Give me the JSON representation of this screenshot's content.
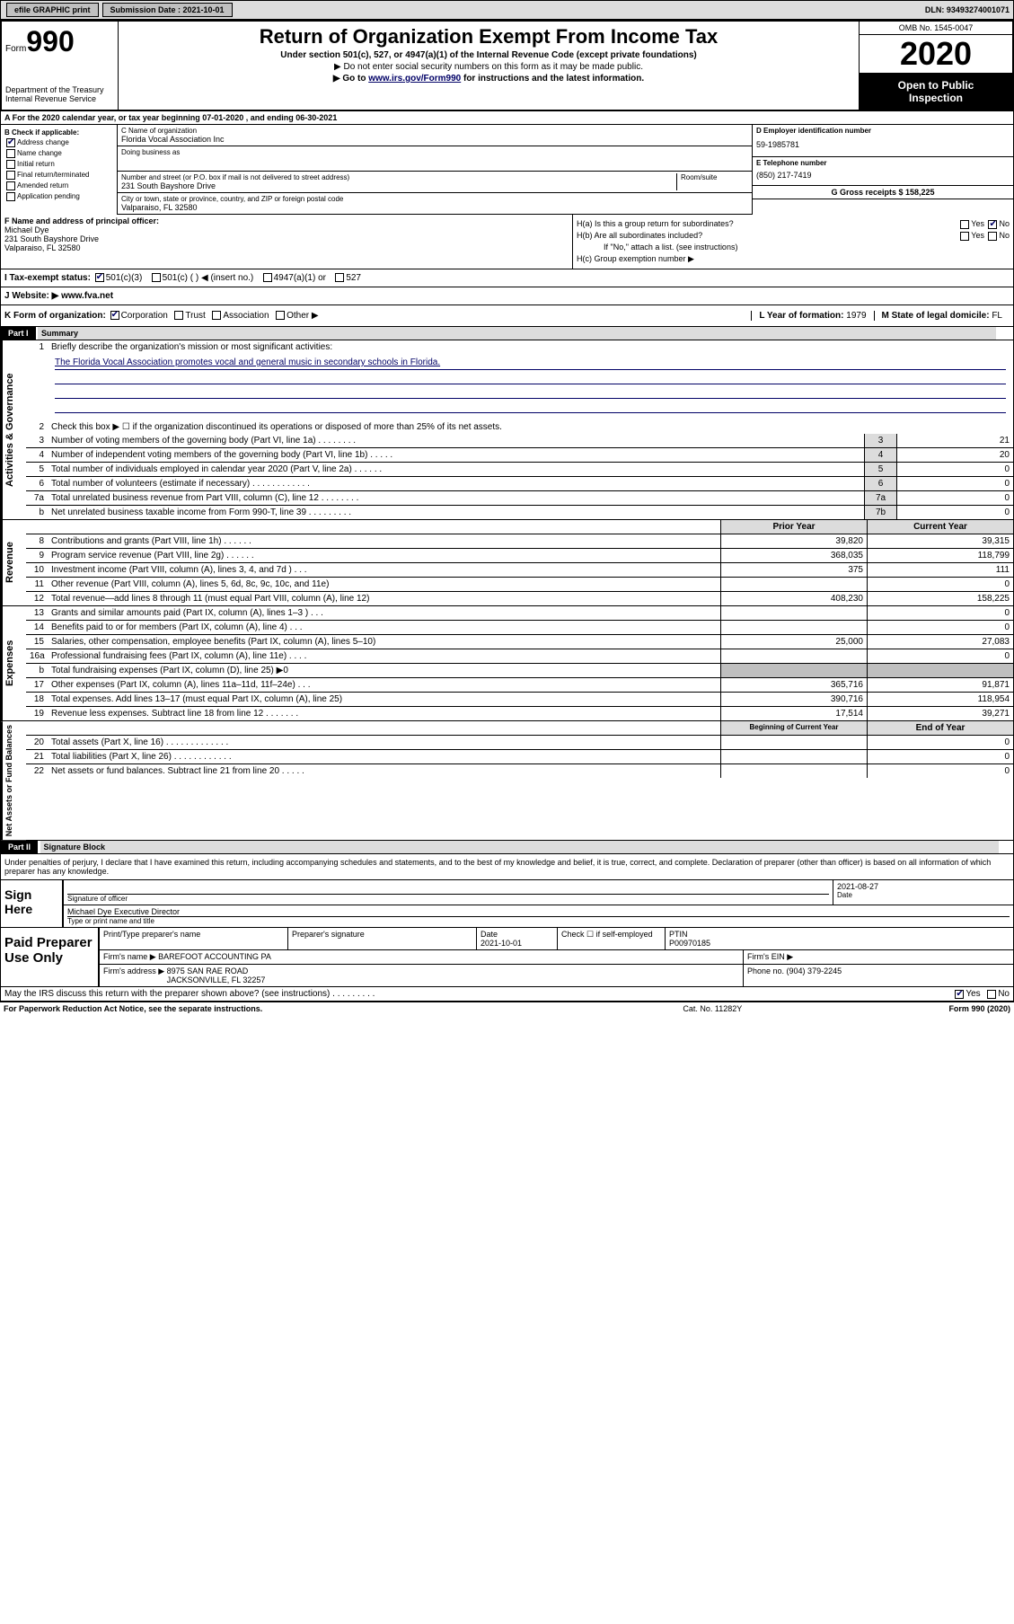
{
  "top": {
    "efile": "efile GRAPHIC print",
    "sub_label": "Submission Date : 2021-10-01",
    "dln": "DLN: 93493274001071"
  },
  "header": {
    "form_word": "Form",
    "form_num": "990",
    "dept": "Department of the Treasury\nInternal Revenue Service",
    "title": "Return of Organization Exempt From Income Tax",
    "sub1": "Under section 501(c), 527, or 4947(a)(1) of the Internal Revenue Code (except private foundations)",
    "sub2": "▶ Do not enter social security numbers on this form as it may be made public.",
    "sub3a": "▶ Go to ",
    "sub3_link": "www.irs.gov/Form990",
    "sub3b": " for instructions and the latest information.",
    "omb": "OMB No. 1545-0047",
    "year": "2020",
    "public": "Open to Public\nInspection"
  },
  "rowA": "A For the 2020 calendar year, or tax year beginning 07-01-2020    , and ending 06-30-2021",
  "colB": {
    "header": "B Check if applicable:",
    "items": [
      "Address change",
      "Name change",
      "Initial return",
      "Final return/terminated",
      "Amended return",
      "Application pending"
    ],
    "checked_idx": 0
  },
  "colC": {
    "name_lbl": "C Name of organization",
    "name": "Florida Vocal Association Inc",
    "dba_lbl": "Doing business as",
    "dba": "",
    "street_lbl": "Number and street (or P.O. box if mail is not delivered to street address)",
    "room_lbl": "Room/suite",
    "street": "231 South Bayshore Drive",
    "city_lbl": "City or town, state or province, country, and ZIP or foreign postal code",
    "city": "Valparaiso, FL  32580"
  },
  "colDE": {
    "d_lbl": "D Employer identification number",
    "d_val": "59-1985781",
    "e_lbl": "E Telephone number",
    "e_val": "(850) 217-7419",
    "g_lbl": "G Gross receipts $ 158,225"
  },
  "fBlock": {
    "f_lbl": "F Name and address of principal officer:",
    "f_val": "Michael Dye\n231 South Bayshore Drive\nValparaiso, FL  32580",
    "ha": "H(a)  Is this a group return for subordinates?",
    "ha_yes": "Yes",
    "ha_no": "No",
    "hb": "H(b)  Are all subordinates included?",
    "hb_yes": "Yes",
    "hb_no": "No",
    "hb_note": "If \"No,\" attach a list. (see instructions)",
    "hc": "H(c)  Group exemption number ▶"
  },
  "taxStatus": {
    "i": "I  Tax-exempt status:",
    "opts": [
      "501(c)(3)",
      "501(c) (  ) ◀ (insert no.)",
      "4947(a)(1) or",
      "527"
    ]
  },
  "website": {
    "j": "J  Website: ▶  www.fva.net"
  },
  "formOrg": {
    "k": "K Form of organization:",
    "opts": [
      "Corporation",
      "Trust",
      "Association",
      "Other ▶"
    ],
    "l_lbl": "L Year of formation: ",
    "l_val": "1979",
    "m_lbl": "M State of legal domicile: ",
    "m_val": "FL"
  },
  "part1": {
    "hdr": "Part I",
    "title": "Summary",
    "q1_lbl": "Briefly describe the organization's mission or most significant activities:",
    "q1_text": "The Florida Vocal Association promotes vocal and general music in secondary schools in Florida.",
    "q2": "Check this box ▶ ☐  if the organization discontinued its operations or disposed of more than 25% of its net assets.",
    "rows_ag": [
      {
        "n": "3",
        "t": "Number of voting members of the governing body (Part VI, line 1a)  .    .    .    .    .    .    .    .",
        "b": "3",
        "v": "21"
      },
      {
        "n": "4",
        "t": "Number of independent voting members of the governing body (Part VI, line 1b)  .    .    .    .    .",
        "b": "4",
        "v": "20"
      },
      {
        "n": "5",
        "t": "Total number of individuals employed in calendar year 2020 (Part V, line 2a)  .    .    .    .    .    .",
        "b": "5",
        "v": "0"
      },
      {
        "n": "6",
        "t": "Total number of volunteers (estimate if necessary)  .     .    .    .    .    .    .    .    .    .    .    .",
        "b": "6",
        "v": "0"
      },
      {
        "n": "7a",
        "t": "Total unrelated business revenue from Part VIII, column (C), line 12  .    .    .    .    .    .    .    .",
        "b": "7a",
        "v": "0"
      },
      {
        "n": "b",
        "t": "Net unrelated business taxable income from Form 990-T, line 39  .    .    .    .    .    .    .    .    .",
        "b": "7b",
        "v": "0"
      }
    ],
    "prior_hdr": "Prior Year",
    "curr_hdr": "Current Year",
    "rows_rev": [
      {
        "n": "8",
        "t": "Contributions and grants (Part VIII, line 1h)    .     .     .     .     .     .",
        "p": "39,820",
        "c": "39,315"
      },
      {
        "n": "9",
        "t": "Program service revenue (Part VIII, line 2g)    .    .    .    .    .    .",
        "p": "368,035",
        "c": "118,799"
      },
      {
        "n": "10",
        "t": "Investment income (Part VIII, column (A), lines 3, 4, and 7d )    .    .    .",
        "p": "375",
        "c": "111"
      },
      {
        "n": "11",
        "t": "Other revenue (Part VIII, column (A), lines 5, 6d, 8c, 9c, 10c, and 11e)",
        "p": "",
        "c": "0"
      },
      {
        "n": "12",
        "t": "Total revenue—add lines 8 through 11 (must equal Part VIII, column (A), line 12)",
        "p": "408,230",
        "c": "158,225"
      }
    ],
    "rows_exp": [
      {
        "n": "13",
        "t": "Grants and similar amounts paid (Part IX, column (A), lines 1–3 )    .    .    .",
        "p": "",
        "c": "0"
      },
      {
        "n": "14",
        "t": "Benefits paid to or for members (Part IX, column (A), line 4)    .    .    .",
        "p": "",
        "c": "0"
      },
      {
        "n": "15",
        "t": "Salaries, other compensation, employee benefits (Part IX, column (A), lines 5–10)",
        "p": "25,000",
        "c": "27,083"
      },
      {
        "n": "16a",
        "t": "Professional fundraising fees (Part IX, column (A), line 11e)    .    .    .    .",
        "p": "",
        "c": "0"
      },
      {
        "n": "b",
        "t": "Total fundraising expenses (Part IX, column (D), line 25) ▶0",
        "p": "shade",
        "c": "shade"
      },
      {
        "n": "17",
        "t": "Other expenses (Part IX, column (A), lines 11a–11d, 11f–24e)    .    .    .",
        "p": "365,716",
        "c": "91,871"
      },
      {
        "n": "18",
        "t": "Total expenses. Add lines 13–17 (must equal Part IX, column (A), line 25)",
        "p": "390,716",
        "c": "118,954"
      },
      {
        "n": "19",
        "t": "Revenue less expenses. Subtract line 18 from line 12    .    .    .    .    .    .    .",
        "p": "17,514",
        "c": "39,271"
      }
    ],
    "begin_hdr": "Beginning of Current Year",
    "end_hdr": "End of Year",
    "rows_net": [
      {
        "n": "20",
        "t": "Total assets (Part X, line 16)  .    .    .    .    .    .    .    .    .    .    .    .    .",
        "p": "",
        "c": "0"
      },
      {
        "n": "21",
        "t": "Total liabilities (Part X, line 26)   .    .    .    .    .    .    .    .    .    .    .    .",
        "p": "",
        "c": "0"
      },
      {
        "n": "22",
        "t": "Net assets or fund balances. Subtract line 21 from line 20  .    .    .    .    .",
        "p": "",
        "c": "0"
      }
    ]
  },
  "part2": {
    "hdr": "Part II",
    "title": "Signature Block",
    "perjury": "Under penalties of perjury, I declare that I have examined this return, including accompanying schedules and statements, and to the best of my knowledge and belief, it is true, correct, and complete. Declaration of preparer (other than officer) is based on all information of which preparer has any knowledge.",
    "sign_here": "Sign Here",
    "sig_of_officer": "Signature of officer",
    "sig_date": "2021-08-27",
    "sig_date_lbl": "Date",
    "officer_name": "Michael Dye  Executive Director",
    "officer_lbl": "Type or print name and title",
    "paid": "Paid Preparer Use Only",
    "prep_name_lbl": "Print/Type preparer's name",
    "prep_sig_lbl": "Preparer's signature",
    "prep_date_lbl": "Date",
    "prep_date": "2021-10-01",
    "prep_check": "Check ☐ if self-employed",
    "ptin_lbl": "PTIN",
    "ptin": "P00970185",
    "firm_name_lbl": "Firm's name    ▶",
    "firm_name": "BAREFOOT ACCOUNTING PA",
    "firm_ein_lbl": "Firm's EIN ▶",
    "firm_addr_lbl": "Firm's address ▶",
    "firm_addr": "8975 SAN RAE ROAD\nJACKSONVILLE, FL  32257",
    "phone_lbl": "Phone no. ",
    "phone": "(904) 379-2245",
    "irs_discuss": "May the IRS discuss this return with the preparer shown above? (see instructions)   .    .    .    .    .    .    .    .    .",
    "yes": "Yes",
    "no": "No"
  },
  "footer": {
    "left": "For Paperwork Reduction Act Notice, see the separate instructions.",
    "mid": "Cat. No. 11282Y",
    "right": "Form 990 (2020)"
  },
  "vert": {
    "ag": "Activities & Governance",
    "rev": "Revenue",
    "exp": "Expenses",
    "net": "Net Assets or Fund Balances"
  }
}
